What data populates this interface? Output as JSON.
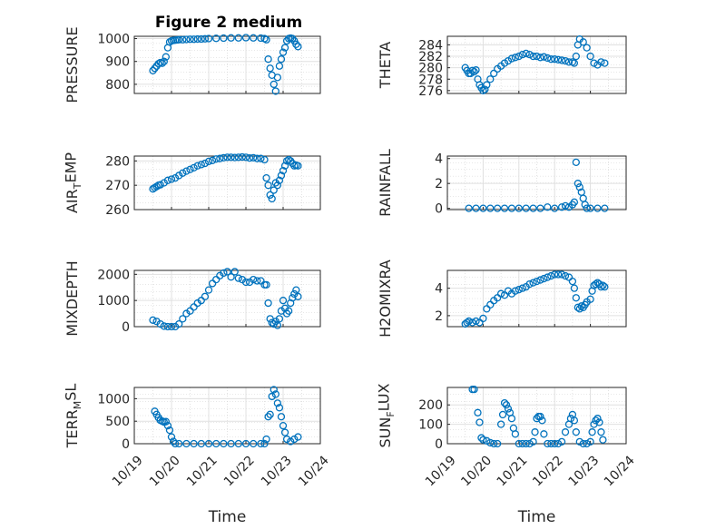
{
  "figure": {
    "title": "Figure 2 medium",
    "marker_color": "#0072BD"
  },
  "chart_data": [
    {
      "type": "scatter",
      "id": "pressure",
      "title": "Figure 2 medium",
      "ylabel": "PRESSURE",
      "ylabel_sub": "",
      "xlabel": "",
      "ylim": [
        760,
        1010
      ],
      "yticks": [
        800,
        900,
        1000
      ],
      "xlim": [
        0,
        5
      ],
      "xtick_labels": [],
      "grid": true,
      "x": [
        0.5,
        0.55,
        0.6,
        0.65,
        0.7,
        0.75,
        0.8,
        0.85,
        0.9,
        0.95,
        1,
        1.05,
        1.1,
        1.15,
        1.2,
        1.3,
        1.4,
        1.5,
        1.6,
        1.7,
        1.8,
        1.9,
        2,
        2.2,
        2.4,
        2.6,
        2.8,
        3,
        3.2,
        3.4,
        3.5,
        3.55,
        3.6,
        3.65,
        3.7,
        3.75,
        3.8,
        3.85,
        3.9,
        3.95,
        4,
        4.05,
        4.1,
        4.15,
        4.2,
        4.25,
        4.3,
        4.35,
        4.4
      ],
      "y": [
        860,
        870,
        880,
        890,
        895,
        892,
        900,
        920,
        960,
        985,
        990,
        992,
        993,
        994,
        995,
        995,
        996,
        997,
        997,
        998,
        998,
        999,
        1000,
        1001,
        1002,
        1003,
        1003,
        1004,
        1003,
        1002,
        1000,
        995,
        910,
        870,
        840,
        800,
        770,
        830,
        880,
        910,
        940,
        960,
        990,
        1000,
        1002,
        1000,
        990,
        975,
        965
      ]
    },
    {
      "type": "scatter",
      "id": "theta",
      "ylabel": "THETA",
      "ylabel_sub": "",
      "xlabel": "",
      "ylim": [
        275.5,
        285.5
      ],
      "yticks": [
        276,
        278,
        280,
        282,
        284
      ],
      "xlim": [
        0,
        5
      ],
      "xtick_labels": [],
      "grid": true,
      "x": [
        0.5,
        0.55,
        0.6,
        0.65,
        0.7,
        0.75,
        0.8,
        0.85,
        0.9,
        0.95,
        1,
        1.05,
        1.1,
        1.2,
        1.3,
        1.4,
        1.5,
        1.6,
        1.7,
        1.8,
        1.9,
        2,
        2.1,
        2.2,
        2.3,
        2.4,
        2.5,
        2.6,
        2.7,
        2.8,
        2.9,
        3,
        3.1,
        3.2,
        3.3,
        3.4,
        3.5,
        3.55,
        3.6,
        3.65,
        3.7,
        3.8,
        3.9,
        4,
        4.1,
        4.2,
        4.3,
        4.4
      ],
      "y": [
        280,
        279.5,
        279,
        279,
        279.5,
        279.3,
        279.6,
        278,
        277,
        276.5,
        276,
        276.2,
        277,
        278,
        279,
        279.8,
        280.3,
        280.8,
        281.2,
        281.6,
        281.8,
        282,
        282.3,
        282.5,
        282.3,
        282,
        282,
        281.8,
        281.9,
        281.7,
        281.5,
        281.5,
        281.4,
        281.3,
        281.2,
        281,
        281,
        280.8,
        282,
        284,
        285,
        284.5,
        283.5,
        282,
        280.8,
        280.5,
        281,
        280.8
      ]
    },
    {
      "type": "scatter",
      "id": "air-temp",
      "ylabel": "AIR",
      "ylabel_sub": "T",
      "ylabel_suffix": "EMP",
      "xlabel": "",
      "ylim": [
        260,
        282
      ],
      "yticks": [
        260,
        270,
        280
      ],
      "xlim": [
        0,
        5
      ],
      "xtick_labels": [],
      "grid": true,
      "x": [
        0.5,
        0.55,
        0.6,
        0.65,
        0.7,
        0.8,
        0.9,
        1,
        1.1,
        1.2,
        1.3,
        1.4,
        1.5,
        1.6,
        1.7,
        1.8,
        1.9,
        2,
        2.1,
        2.2,
        2.3,
        2.4,
        2.5,
        2.6,
        2.7,
        2.8,
        2.9,
        3,
        3.1,
        3.2,
        3.3,
        3.4,
        3.5,
        3.55,
        3.6,
        3.65,
        3.7,
        3.75,
        3.8,
        3.85,
        3.9,
        3.95,
        4,
        4.05,
        4.1,
        4.15,
        4.2,
        4.25,
        4.3,
        4.35,
        4.4
      ],
      "y": [
        268.5,
        269,
        269.5,
        270,
        270.2,
        271,
        272,
        272.5,
        273,
        274,
        275,
        275.8,
        276.5,
        277.2,
        278,
        278.5,
        279,
        279.8,
        280.2,
        280.8,
        281,
        281.3,
        281.5,
        281.5,
        281.4,
        281.5,
        281.6,
        281.5,
        281.2,
        281.3,
        281,
        281,
        280.5,
        273,
        270,
        266,
        264.5,
        268,
        271,
        270,
        272,
        274,
        276,
        278,
        280,
        280.5,
        280,
        279,
        278,
        278.2,
        278
      ]
    },
    {
      "type": "scatter",
      "id": "rainfall",
      "ylabel": "RAINFALL",
      "ylabel_sub": "",
      "xlabel": "",
      "ylim": [
        -0.1,
        4.2
      ],
      "yticks": [
        0,
        2,
        4
      ],
      "xlim": [
        0,
        5
      ],
      "xtick_labels": [],
      "grid": true,
      "x": [
        0.6,
        0.8,
        1,
        1.2,
        1.4,
        1.6,
        1.8,
        2,
        2.2,
        2.4,
        2.6,
        2.8,
        3,
        3.2,
        3.3,
        3.4,
        3.5,
        3.55,
        3.6,
        3.65,
        3.7,
        3.75,
        3.8,
        3.85,
        3.9,
        4,
        4.2,
        4.4
      ],
      "y": [
        0,
        0,
        0,
        0,
        0,
        0,
        0,
        0,
        0,
        0,
        0,
        0.1,
        0,
        0.1,
        0.2,
        0.1,
        0.3,
        0.5,
        3.7,
        2,
        1.7,
        1.3,
        0.8,
        0.3,
        0,
        0,
        0,
        0
      ]
    },
    {
      "type": "scatter",
      "id": "mixdepth",
      "ylabel": "MIXDEPTH",
      "ylabel_sub": "",
      "xlabel": "",
      "ylim": [
        0,
        2150
      ],
      "yticks": [
        0,
        1000,
        2000
      ],
      "xlim": [
        0,
        5
      ],
      "xtick_labels": [],
      "grid": true,
      "x": [
        0.5,
        0.6,
        0.7,
        0.8,
        0.9,
        1,
        1.1,
        1.2,
        1.3,
        1.4,
        1.5,
        1.6,
        1.7,
        1.8,
        1.9,
        2,
        2.1,
        2.2,
        2.3,
        2.4,
        2.5,
        2.6,
        2.7,
        2.8,
        2.9,
        3,
        3.1,
        3.2,
        3.3,
        3.4,
        3.5,
        3.55,
        3.6,
        3.65,
        3.7,
        3.75,
        3.8,
        3.85,
        3.9,
        3.95,
        4,
        4.05,
        4.1,
        4.15,
        4.2,
        4.25,
        4.3,
        4.35,
        4.4
      ],
      "y": [
        250,
        200,
        100,
        20,
        0,
        0,
        0,
        100,
        300,
        500,
        600,
        750,
        900,
        1000,
        1150,
        1400,
        1650,
        1800,
        1950,
        2050,
        2100,
        1900,
        2100,
        1850,
        1800,
        1700,
        1700,
        1800,
        1750,
        1750,
        1600,
        1600,
        900,
        300,
        150,
        100,
        200,
        50,
        300,
        600,
        1000,
        700,
        500,
        600,
        900,
        1100,
        1250,
        1400,
        1150
      ]
    },
    {
      "type": "scatter",
      "id": "h2omixra",
      "ylabel": "H2OMIXRA",
      "ylabel_sub": "",
      "xlabel": "",
      "ylim": [
        1.2,
        5.3
      ],
      "yticks": [
        2,
        4
      ],
      "xlim": [
        0,
        5
      ],
      "xtick_labels": [],
      "grid": true,
      "x": [
        0.5,
        0.55,
        0.6,
        0.7,
        0.8,
        0.9,
        1,
        1.1,
        1.2,
        1.3,
        1.4,
        1.5,
        1.6,
        1.7,
        1.8,
        1.9,
        2,
        2.1,
        2.2,
        2.3,
        2.4,
        2.5,
        2.6,
        2.7,
        2.8,
        2.9,
        3,
        3.1,
        3.2,
        3.3,
        3.4,
        3.5,
        3.55,
        3.6,
        3.65,
        3.7,
        3.75,
        3.8,
        3.85,
        3.9,
        4,
        4.05,
        4.1,
        4.15,
        4.2,
        4.25,
        4.3,
        4.35,
        4.4
      ],
      "y": [
        1.4,
        1.5,
        1.6,
        1.5,
        1.6,
        1.5,
        1.8,
        2.5,
        2.8,
        3.1,
        3.3,
        3.6,
        3.5,
        3.8,
        3.6,
        3.8,
        3.9,
        4,
        4.1,
        4.3,
        4.4,
        4.5,
        4.6,
        4.7,
        4.8,
        4.9,
        5,
        5,
        5,
        4.9,
        4.8,
        4.5,
        4,
        3.3,
        2.6,
        2.5,
        2.7,
        2.6,
        2.8,
        3,
        3.2,
        3.8,
        4.2,
        4.3,
        4.4,
        4.3,
        4.1,
        4.2,
        4.1
      ]
    },
    {
      "type": "scatter",
      "id": "terr-msl",
      "ylabel": "TERR",
      "ylabel_sub": "M",
      "ylabel_suffix": "SL",
      "xlabel": "Time",
      "ylim": [
        0,
        1250
      ],
      "yticks": [
        0,
        500,
        1000
      ],
      "xlim": [
        0,
        5
      ],
      "xtick_labels": [
        "10/19",
        "10/20",
        "10/21",
        "10/22",
        "10/23",
        "10/24"
      ],
      "grid": true,
      "x": [
        0.55,
        0.6,
        0.65,
        0.7,
        0.75,
        0.8,
        0.85,
        0.9,
        0.95,
        1,
        1.05,
        1.1,
        1.2,
        1.4,
        1.6,
        1.8,
        2,
        2.2,
        2.4,
        2.6,
        2.8,
        3,
        3.2,
        3.4,
        3.5,
        3.55,
        3.6,
        3.65,
        3.7,
        3.75,
        3.8,
        3.85,
        3.9,
        3.95,
        4,
        4.05,
        4.1,
        4.2,
        4.3,
        4.4
      ],
      "y": [
        720,
        650,
        580,
        520,
        500,
        480,
        490,
        400,
        300,
        150,
        50,
        0,
        0,
        0,
        0,
        0,
        0,
        0,
        0,
        0,
        0,
        0,
        0,
        0,
        0,
        100,
        600,
        650,
        1050,
        1200,
        1100,
        900,
        800,
        600,
        400,
        250,
        100,
        50,
        100,
        150
      ]
    },
    {
      "type": "scatter",
      "id": "sun-flux",
      "ylabel": "SUN",
      "ylabel_sub": "F",
      "ylabel_suffix": "LUX",
      "xlabel": "Time",
      "ylim": [
        0,
        290
      ],
      "yticks": [
        0,
        100,
        200
      ],
      "xlim": [
        0,
        5
      ],
      "xtick_labels": [
        "10/19",
        "10/20",
        "10/21",
        "10/22",
        "10/23",
        "10/24"
      ],
      "grid": true,
      "x": [
        0.7,
        0.75,
        0.85,
        0.9,
        0.95,
        1,
        1.1,
        1.2,
        1.3,
        1.4,
        1.5,
        1.55,
        1.6,
        1.65,
        1.7,
        1.75,
        1.8,
        1.85,
        1.9,
        2,
        2.1,
        2.2,
        2.3,
        2.4,
        2.45,
        2.5,
        2.55,
        2.6,
        2.65,
        2.7,
        2.8,
        2.9,
        3,
        3.1,
        3.2,
        3.3,
        3.4,
        3.45,
        3.5,
        3.55,
        3.6,
        3.7,
        3.8,
        3.9,
        4,
        4.05,
        4.1,
        4.15,
        4.2,
        4.25,
        4.3,
        4.35
      ],
      "y": [
        280,
        280,
        160,
        110,
        30,
        20,
        15,
        5,
        0,
        0,
        100,
        150,
        210,
        200,
        180,
        160,
        130,
        80,
        50,
        0,
        0,
        0,
        0,
        10,
        60,
        130,
        140,
        140,
        120,
        50,
        0,
        0,
        0,
        0,
        10,
        60,
        100,
        130,
        150,
        120,
        60,
        10,
        0,
        0,
        10,
        60,
        100,
        120,
        130,
        110,
        60,
        20
      ]
    }
  ]
}
